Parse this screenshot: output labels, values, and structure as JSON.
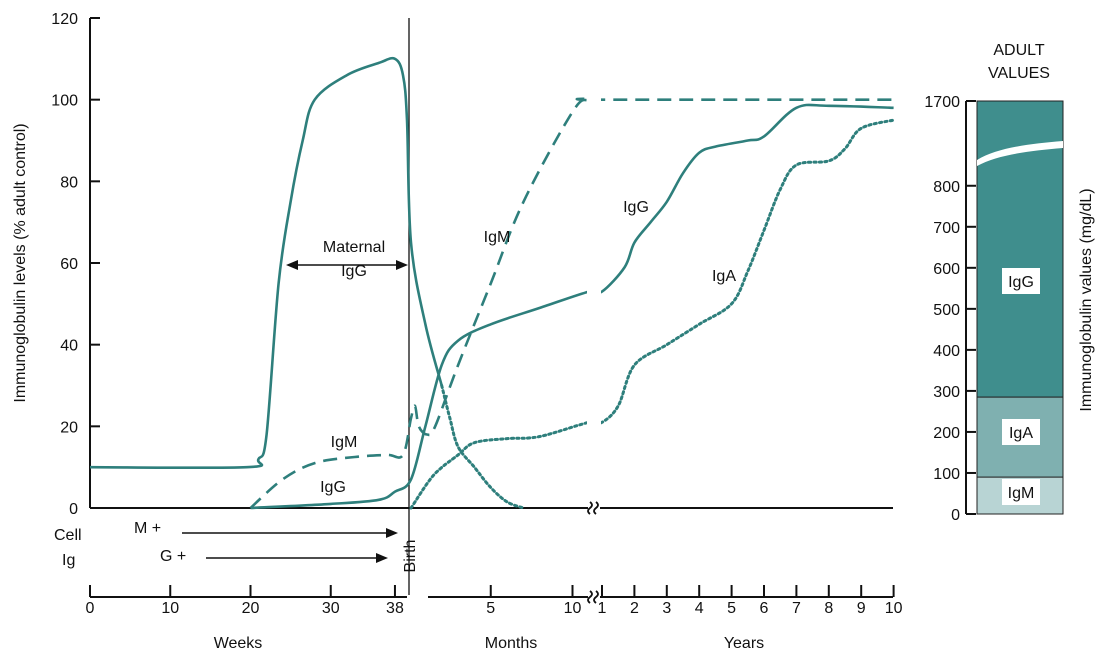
{
  "colors": {
    "series": "#2e7f7c",
    "igg_bar": "#3f8e8d",
    "iga_bar": "#7fb0b0",
    "igm_bar": "#b8d4d4",
    "axis": "#111111"
  },
  "chart_data": [
    {
      "type": "line",
      "ylabel": "Immunoglobulin levels (% adult control)",
      "ylim": [
        0,
        120
      ],
      "yticks": [
        "0",
        "20",
        "40",
        "60",
        "80",
        "100",
        "120"
      ],
      "x_segments": [
        {
          "unit": "Weeks",
          "ticks": [
            "0",
            "10",
            "20",
            "30",
            "38"
          ],
          "range": [
            0,
            40
          ]
        },
        {
          "unit": "Months",
          "ticks": [
            "5",
            "10"
          ],
          "range": [
            0,
            11
          ]
        },
        {
          "unit": "Years",
          "ticks": [
            "1",
            "2",
            "3",
            "4",
            "5",
            "6",
            "7",
            "8",
            "9",
            "10"
          ],
          "range": [
            1,
            10
          ]
        }
      ],
      "birth_label": "Birth",
      "series": [
        {
          "name": "Maternal IgG",
          "style": "solid",
          "points": [
            [
              "wk",
              0,
              10
            ],
            [
              "wk",
              19.5,
              10
            ],
            [
              "wk",
              21,
              12
            ],
            [
              "wk",
              22,
              18
            ],
            [
              "wk",
              23.5,
              55
            ],
            [
              "wk",
              25,
              75
            ],
            [
              "wk",
              26.5,
              90
            ],
            [
              "wk",
              28,
              100
            ],
            [
              "wk",
              32,
              106
            ],
            [
              "wk",
              36,
              109
            ],
            [
              "wk",
              38,
              110
            ],
            [
              "wk",
              39,
              106
            ],
            [
              "wk",
              39.5,
              95
            ],
            [
              "wk",
              40,
              65
            ],
            [
              "mo",
              1,
              45
            ],
            [
              "mo",
              2,
              30
            ]
          ]
        },
        {
          "name": "IgM",
          "style": "dashed",
          "points": [
            [
              "wk",
              20,
              0
            ],
            [
              "wk",
              24,
              7
            ],
            [
              "wk",
              28,
              11
            ],
            [
              "wk",
              33,
              12.5
            ],
            [
              "wk",
              37,
              13
            ],
            [
              "wk",
              39,
              13
            ],
            [
              "wk",
              40,
              22
            ],
            [
              "wk",
              40.5,
              25
            ],
            [
              "mo",
              0.6,
              20
            ],
            [
              "mo",
              1.1,
              18
            ],
            [
              "mo",
              1.6,
              20
            ],
            [
              "mo",
              3,
              35
            ],
            [
              "mo",
              5,
              55
            ],
            [
              "mo",
              7,
              75
            ],
            [
              "mo",
              10,
              97
            ],
            [
              "mo",
              11,
              100
            ],
            [
              "yr",
              1,
              100
            ],
            [
              "yr",
              10,
              100
            ]
          ]
        },
        {
          "name": "IgG",
          "style": "solid",
          "points": [
            [
              "wk",
              20,
              0
            ],
            [
              "wk",
              30,
              1
            ],
            [
              "wk",
              36,
              2
            ],
            [
              "wk",
              38,
              4
            ],
            [
              "wk",
              40,
              7
            ],
            [
              "mo",
              1,
              20
            ],
            [
              "mo",
              2,
              35
            ],
            [
              "mo",
              3,
              41
            ],
            [
              "mo",
              5,
              45
            ],
            [
              "mo",
              8,
              49
            ],
            [
              "mo",
              11,
              53
            ],
            [
              "yr",
              1,
              53
            ],
            [
              "yr",
              1.7,
              59
            ],
            [
              "yr",
              2,
              65
            ],
            [
              "yr",
              2.5,
              70
            ],
            [
              "yr",
              3,
              75
            ],
            [
              "yr",
              3.5,
              82
            ],
            [
              "yr",
              4,
              87
            ],
            [
              "yr",
              4.5,
              88.5
            ],
            [
              "yr",
              5.5,
              90
            ],
            [
              "yr",
              6,
              91
            ],
            [
              "yr",
              7,
              98
            ],
            [
              "yr",
              8,
              98.5
            ],
            [
              "yr",
              10,
              98
            ]
          ]
        },
        {
          "name": "Maternal IgG tail",
          "style": "dotted",
          "points": [
            [
              "mo",
              2,
              30
            ],
            [
              "mo",
              2.5,
              22
            ],
            [
              "mo",
              3,
              15
            ],
            [
              "mo",
              4,
              10
            ],
            [
              "mo",
              5,
              5
            ],
            [
              "mo",
              6,
              1.5
            ],
            [
              "mo",
              7,
              0
            ]
          ]
        },
        {
          "name": "IgA",
          "style": "dotted",
          "points": [
            [
              "wk",
              40,
              0
            ],
            [
              "mo",
              1.5,
              8
            ],
            [
              "mo",
              3,
              13
            ],
            [
              "mo",
              4,
              16
            ],
            [
              "mo",
              6,
              17
            ],
            [
              "mo",
              8,
              17.5
            ],
            [
              "mo",
              11,
              21
            ],
            [
              "yr",
              1,
              21
            ],
            [
              "yr",
              1.5,
              25
            ],
            [
              "yr",
              2,
              35
            ],
            [
              "yr",
              3,
              40
            ],
            [
              "yr",
              4,
              45
            ],
            [
              "yr",
              5,
              50
            ],
            [
              "yr",
              5.5,
              58
            ],
            [
              "yr",
              6,
              68
            ],
            [
              "yr",
              6.5,
              78
            ],
            [
              "yr",
              7,
              84
            ],
            [
              "yr",
              8,
              85
            ],
            [
              "yr",
              8.5,
              88
            ],
            [
              "yr",
              9,
              93
            ],
            [
              "yr",
              10,
              95
            ]
          ]
        }
      ]
    },
    {
      "type": "bar",
      "title": "ADULT VALUES",
      "ylabel": "Immunoglobulin values (mg/dL)",
      "yticks": [
        "0",
        "100",
        "200",
        "300",
        "400",
        "500",
        "600",
        "700",
        "800",
        "1700"
      ],
      "segments": [
        {
          "name": "IgM",
          "from": 0,
          "to": 90
        },
        {
          "name": "IgA",
          "from": 90,
          "to": 285
        },
        {
          "name": "IgG",
          "from": 285,
          "to": 1700
        }
      ]
    }
  ],
  "annotations": {
    "maternal_igg": [
      "Maternal",
      "IgG"
    ],
    "igm_before_birth": "IgM",
    "igg_before_birth": "IgG",
    "igm_after": "IgM",
    "igg_after": "IgG",
    "iga_after": "IgA",
    "cell_ig": [
      "Cell",
      "Ig"
    ],
    "m_plus": "M +",
    "g_plus": "G +",
    "break_symbol": "≈"
  }
}
